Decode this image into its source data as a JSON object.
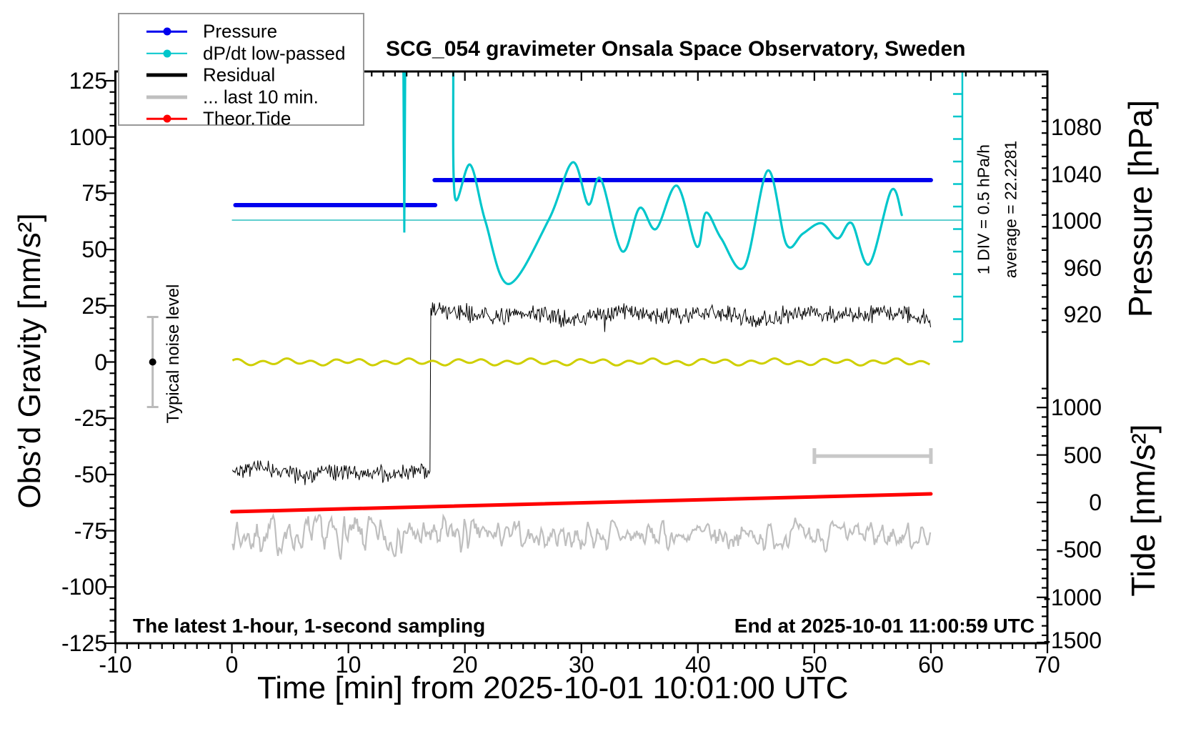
{
  "title": "SCG_054 gravimeter Onsala Space Observatory, Sweden",
  "annotations": {
    "div_scale": "1 DIV = 0.5 hPa/h",
    "average": "average = 22.2281",
    "noise_level": "Typical noise level",
    "sampling": "The latest 1-hour, 1-second sampling",
    "end_time": "End at 2025-10-01 11:00:59 UTC"
  },
  "legend": {
    "items": [
      {
        "label": "Pressure",
        "color": "#0000EE",
        "dot": true,
        "thick": false
      },
      {
        "label": "dP/dt low-passed",
        "color": "#00C6CB",
        "dot": true,
        "thick": false
      },
      {
        "label": "Residual",
        "color": "#000000",
        "dot": false,
        "thick": true
      },
      {
        "label": "... last 10 min.",
        "color": "#BFBFBF",
        "dot": false,
        "thick": true
      },
      {
        "label": "Theor.Tide",
        "color": "#FF0000",
        "dot": true,
        "thick": false
      }
    ]
  },
  "chart_data": {
    "type": "line",
    "title": "SCG_054 gravimeter Onsala Space Observatory, Sweden",
    "axes": {
      "x": {
        "label": "Time [min] from 2025-10-01 10:01:00 UTC",
        "domain": [
          -10,
          70
        ],
        "major_ticks": [
          -10,
          0,
          10,
          20,
          30,
          40,
          50,
          60,
          70
        ],
        "minor_step": 1
      },
      "gravity": {
        "label": "Obs’d Gravity [nm/s²]",
        "domain": [
          -125,
          125
        ],
        "major_ticks": [
          125,
          100,
          75,
          50,
          25,
          0,
          -25,
          -50,
          -75,
          -100,
          -125
        ],
        "minor_step": 5
      },
      "pressure": {
        "label": "Pressure [hPa]",
        "major_ticks": [
          1080,
          1040,
          1000,
          960,
          920
        ],
        "minor_step": 10
      },
      "tide": {
        "label": "Tide [nm/s²]",
        "major_ticks": [
          1000,
          500,
          0,
          -500,
          -1000,
          -1500
        ],
        "minor_step": 100
      }
    },
    "colors": {
      "pressure": "#0000EE",
      "dpdt": "#00C6CB",
      "dpdt_baseline": "#5FCFCF",
      "residual": "#000000",
      "smoothed": "#CFCF00",
      "last10": "#BFBFBF",
      "tide": "#FF0000",
      "frame": "#000000",
      "noise_marker": "#BBBBBB"
    },
    "series": {
      "pressure_segments": [
        {
          "t": [
            0.3,
            17.45
          ],
          "hpa": 1013.4
        },
        {
          "t": [
            17.4,
            60.0
          ],
          "hpa": 1034.8
        }
      ],
      "dpdt": {
        "units": "hPa-axis equivalent",
        "baseline_hpa": 1000.6,
        "baseline_t": [
          0,
          62.7
        ],
        "spike": [
          [
            14.72,
            1128
          ],
          [
            14.8,
            990
          ],
          [
            14.88,
            1128
          ]
        ],
        "curve": [
          [
            19.0,
            1128
          ],
          [
            19.15,
            1020
          ],
          [
            20.45,
            1048
          ],
          [
            21.75,
            1000
          ],
          [
            23.75,
            946
          ],
          [
            27.2,
            1001
          ],
          [
            29.25,
            1050
          ],
          [
            30.6,
            1014
          ],
          [
            31.65,
            1036
          ],
          [
            33.5,
            974
          ],
          [
            35.0,
            1011
          ],
          [
            36.4,
            993
          ],
          [
            38.2,
            1030
          ],
          [
            39.9,
            978
          ],
          [
            40.7,
            1007
          ],
          [
            42.0,
            985
          ],
          [
            44.0,
            961
          ],
          [
            46.0,
            1043
          ],
          [
            47.6,
            980
          ],
          [
            49.0,
            989
          ],
          [
            50.6,
            998
          ],
          [
            52.0,
            985
          ],
          [
            53.2,
            998
          ],
          [
            54.7,
            963
          ],
          [
            56.6,
            1026
          ],
          [
            57.5,
            1005
          ]
        ]
      },
      "residual": {
        "t_range": [
          0.05,
          60
        ],
        "dt": 0.075,
        "t_step": 17.05,
        "level_before": -48.9,
        "level_after": 20.9,
        "noise_amp": 4.6,
        "spike_prob": 0.022,
        "spike_gain": 2.3,
        "seed": 42
      },
      "smoothed_residual": {
        "wiggle_amp": 1.0
      },
      "last10": {
        "center": -77.3,
        "amp_early": 7.2,
        "amp_late": 5.2,
        "t_split": 23,
        "t_range": [
          0.05,
          60
        ],
        "dt": 0.1,
        "seed": 7
      },
      "tide_line": {
        "t": [
          0,
          60
        ],
        "v": [
          -98,
          90
        ]
      },
      "scale_bar_10min": {
        "t": [
          50,
          60
        ],
        "gravity": -41.8
      },
      "noise_marker": {
        "t": -6.8,
        "center": 0,
        "half_range": 20
      }
    },
    "div_bar": {
      "divisions": 12,
      "label": "1 DIV = 0.5 hPa/h"
    }
  }
}
